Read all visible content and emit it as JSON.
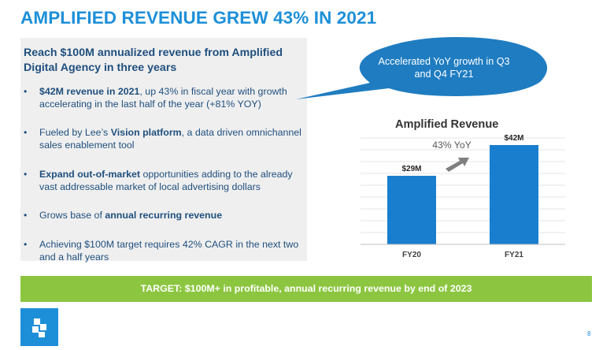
{
  "slide": {
    "title": "AMPLIFIED REVENUE GREW 43% IN 2021",
    "lead": "Reach $100M annualized revenue from Amplified Digital Agency in three years",
    "bullets": [
      {
        "bold": "$42M revenue in 2021",
        "pre": "",
        "post": ", up 43% in fiscal year with growth accelerating in the last half of the year (+81% YOY)"
      },
      {
        "pre": "Fueled by Lee’s ",
        "bold": "Vision platform",
        "post": ", a data driven omnichannel sales enablement tool"
      },
      {
        "pre": "",
        "bold": "Expand out-of-market",
        "post": " opportunities adding to the already vast addressable market of local advertising dollars"
      },
      {
        "pre": "Grows base of ",
        "bold": "annual recurring revenue",
        "post": ""
      },
      {
        "pre": "Achieving $100M target requires 42% CAGR in the next two and a half years",
        "bold": "",
        "post": ""
      }
    ],
    "bullet_char": "•",
    "callout": "Accelerated YoY growth in Q3 and Q4 FY21",
    "target": "TARGET: $100M+ in profitable, annual recurring revenue by end of 2023",
    "page_number": "8",
    "colors": {
      "brand_blue": "#1d8fd8",
      "navy": "#1f4f7e",
      "green": "#8cc640",
      "callout_blue": "#1f7cc1"
    }
  },
  "chart_data": {
    "type": "bar",
    "title": "Amplified Revenue",
    "categories": [
      "FY20",
      "FY21"
    ],
    "values": [
      29,
      42
    ],
    "data_labels": [
      "$29M",
      "$42M"
    ],
    "units": "$M",
    "ylim": [
      0,
      45
    ],
    "grid": true,
    "annotation": "43% YoY",
    "bar_color": "#1a7ecf"
  }
}
